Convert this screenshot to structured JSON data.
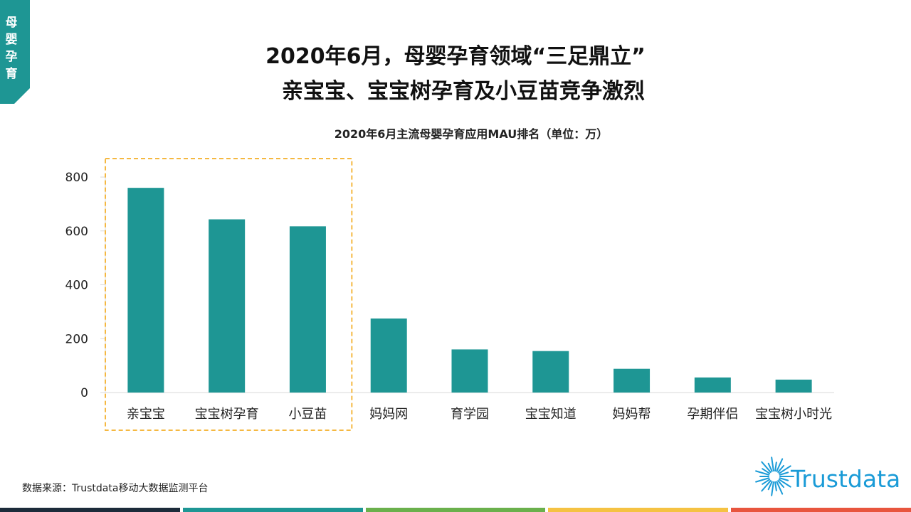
{
  "section_label": "母婴孕育",
  "title": {
    "line1": "2020年6月，母婴孕育领域“三足鼎立”",
    "line2": "亲宝宝、宝宝树孕育及小豆苗竞争激烈"
  },
  "chart_data": {
    "type": "bar",
    "title": "2020年6月主流母婴孕育应用MAU排名（单位：万）",
    "categories": [
      "亲宝宝",
      "宝宝树孕育",
      "小豆苗",
      "妈妈网",
      "育学园",
      "宝宝知道",
      "妈妈帮",
      "孕期伴侣",
      "宝宝树小时光"
    ],
    "values": [
      760,
      643,
      617,
      275,
      160,
      154,
      88,
      56,
      48
    ],
    "ylim": [
      0,
      800
    ],
    "yticks": [
      0,
      200,
      400,
      600,
      800
    ],
    "xlabel": "",
    "ylabel": "",
    "highlight_count": 3,
    "colors": {
      "bar": "#1e9694",
      "highlight_border": "#f5b841",
      "axis": "#d9d9d9"
    }
  },
  "source": "数据来源：Trustdata移动大数据监测平台",
  "logo": {
    "text": "Trustdata",
    "color": "#1a9bd7"
  },
  "theme": {
    "tab_color": "#1e9694",
    "strip_colors": [
      "#1c2b3a",
      "#1e9694",
      "#6ab04c",
      "#f5c242",
      "#e8553e"
    ]
  }
}
